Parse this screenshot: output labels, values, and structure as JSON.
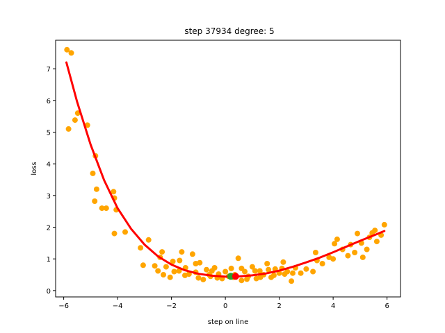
{
  "chart_data": {
    "type": "scatter",
    "title": "step 37934   degree: 5",
    "xlabel": "step on line",
    "ylabel": "loss",
    "xlim": [
      -6.3,
      6.5
    ],
    "ylim": [
      -0.2,
      7.9
    ],
    "xticks": [
      -6,
      -4,
      -2,
      0,
      2,
      4,
      6
    ],
    "yticks": [
      0,
      1,
      2,
      3,
      4,
      5,
      6,
      7
    ],
    "grid": false,
    "colors": {
      "points": "#ffa500",
      "fit": "#ff0000",
      "current": "#ff0000",
      "marker_green": "#2ca02c"
    },
    "series": [
      {
        "type": "scatter",
        "points": [
          [
            -5.88,
            7.6
          ],
          [
            -5.72,
            7.5
          ],
          [
            -5.82,
            5.1
          ],
          [
            -5.58,
            5.38
          ],
          [
            -5.48,
            5.6
          ],
          [
            -5.12,
            5.22
          ],
          [
            -4.92,
            3.7
          ],
          [
            -4.82,
            4.25
          ],
          [
            -4.78,
            3.2
          ],
          [
            -4.85,
            2.82
          ],
          [
            -4.58,
            2.6
          ],
          [
            -4.42,
            2.6
          ],
          [
            -4.15,
            3.12
          ],
          [
            -4.12,
            2.92
          ],
          [
            -4.05,
            2.55
          ],
          [
            -4.12,
            1.8
          ],
          [
            -3.72,
            1.85
          ],
          [
            -3.15,
            1.35
          ],
          [
            -3.05,
            0.8
          ],
          [
            -2.85,
            1.6
          ],
          [
            -2.62,
            0.78
          ],
          [
            -2.42,
            1.05
          ],
          [
            -2.35,
            1.22
          ],
          [
            -2.2,
            0.75
          ],
          [
            -2.05,
            0.42
          ],
          [
            -1.95,
            0.92
          ],
          [
            -1.72,
            0.62
          ],
          [
            -1.62,
            1.22
          ],
          [
            -1.48,
            0.72
          ],
          [
            -1.35,
            0.52
          ],
          [
            -1.22,
            1.15
          ],
          [
            -1.1,
            0.58
          ],
          [
            -0.95,
            0.88
          ],
          [
            -0.82,
            0.35
          ],
          [
            -0.7,
            0.66
          ],
          [
            -0.55,
            0.45
          ],
          [
            -0.4,
            0.72
          ],
          [
            -0.25,
            0.52
          ],
          [
            -0.12,
            0.38
          ],
          [
            0.0,
            0.6
          ],
          [
            0.12,
            0.45
          ],
          [
            0.22,
            0.7
          ],
          [
            0.35,
            0.5
          ],
          [
            0.48,
            1.02
          ],
          [
            0.6,
            0.32
          ],
          [
            0.72,
            0.6
          ],
          [
            0.85,
            0.45
          ],
          [
            1.0,
            0.75
          ],
          [
            1.15,
            0.38
          ],
          [
            1.28,
            0.62
          ],
          [
            1.42,
            0.5
          ],
          [
            1.55,
            0.85
          ],
          [
            1.7,
            0.42
          ],
          [
            1.85,
            0.68
          ],
          [
            2.0,
            0.55
          ],
          [
            2.15,
            0.9
          ],
          [
            2.3,
            0.6
          ],
          [
            2.45,
            0.3
          ],
          [
            2.6,
            0.72
          ],
          [
            2.8,
            0.55
          ],
          [
            3.0,
            0.68
          ],
          [
            3.25,
            0.6
          ],
          [
            3.35,
            1.2
          ],
          [
            3.4,
            0.95
          ],
          [
            3.6,
            0.85
          ],
          [
            3.85,
            1.05
          ],
          [
            4.0,
            1.0
          ],
          [
            4.05,
            1.48
          ],
          [
            4.15,
            1.62
          ],
          [
            4.35,
            1.3
          ],
          [
            4.55,
            1.1
          ],
          [
            4.65,
            1.45
          ],
          [
            4.8,
            1.2
          ],
          [
            4.9,
            1.8
          ],
          [
            5.05,
            1.5
          ],
          [
            5.1,
            1.05
          ],
          [
            5.25,
            1.3
          ],
          [
            5.35,
            1.68
          ],
          [
            5.45,
            1.82
          ],
          [
            5.55,
            1.9
          ],
          [
            5.62,
            1.55
          ],
          [
            5.78,
            1.75
          ],
          [
            5.9,
            2.08
          ],
          [
            -2.3,
            0.5
          ],
          [
            -1.9,
            0.6
          ],
          [
            -1.5,
            0.48
          ],
          [
            -1.0,
            0.4
          ],
          [
            -0.6,
            0.5
          ],
          [
            -0.3,
            0.4
          ],
          [
            0.3,
            0.42
          ],
          [
            0.8,
            0.36
          ],
          [
            1.3,
            0.42
          ],
          [
            1.8,
            0.48
          ],
          [
            2.2,
            0.52
          ],
          [
            -1.7,
            0.95
          ],
          [
            -1.1,
            0.85
          ],
          [
            -0.5,
            0.62
          ],
          [
            0.6,
            0.7
          ],
          [
            1.1,
            0.62
          ],
          [
            1.6,
            0.66
          ],
          [
            2.1,
            0.7
          ],
          [
            -2.5,
            0.62
          ],
          [
            2.5,
            0.55
          ]
        ]
      },
      {
        "type": "line",
        "name": "fit",
        "poly_samples": [
          [
            -5.9,
            7.2
          ],
          [
            -5.5,
            5.95
          ],
          [
            -5.0,
            4.6
          ],
          [
            -4.5,
            3.48
          ],
          [
            -4.0,
            2.6
          ],
          [
            -3.5,
            1.95
          ],
          [
            -3.0,
            1.45
          ],
          [
            -2.5,
            1.08
          ],
          [
            -2.0,
            0.82
          ],
          [
            -1.5,
            0.64
          ],
          [
            -1.0,
            0.53
          ],
          [
            -0.5,
            0.47
          ],
          [
            0.0,
            0.44
          ],
          [
            0.4,
            0.44
          ],
          [
            1.0,
            0.48
          ],
          [
            1.5,
            0.54
          ],
          [
            2.0,
            0.63
          ],
          [
            2.5,
            0.75
          ],
          [
            3.0,
            0.89
          ],
          [
            3.5,
            1.04
          ],
          [
            4.0,
            1.21
          ],
          [
            4.5,
            1.39
          ],
          [
            5.0,
            1.57
          ],
          [
            5.5,
            1.74
          ],
          [
            5.9,
            1.88
          ]
        ]
      },
      {
        "type": "point",
        "name": "current",
        "x": 0.38,
        "y": 0.45
      },
      {
        "type": "point",
        "name": "reference",
        "x": 0.2,
        "y": 0.45
      }
    ]
  }
}
